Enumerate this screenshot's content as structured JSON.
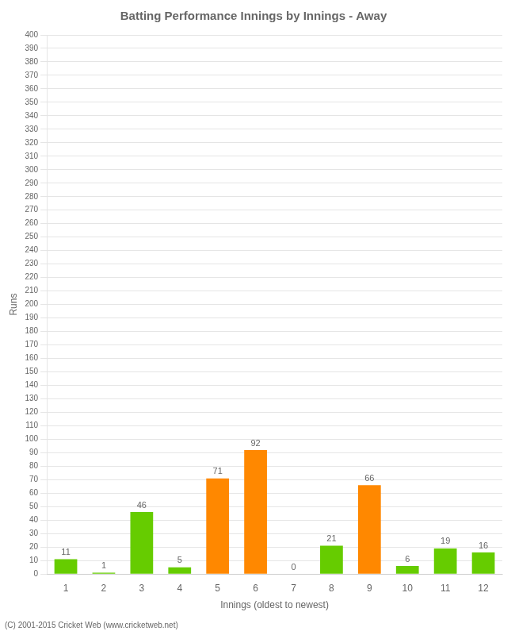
{
  "chart_data": {
    "type": "bar",
    "title": "Batting Performance Innings by Innings - Away",
    "xlabel": "Innings (oldest to newest)",
    "ylabel": "Runs",
    "footer": "(C) 2001-2015 Cricket Web (www.cricketweb.net)",
    "categories": [
      "1",
      "2",
      "3",
      "4",
      "5",
      "6",
      "7",
      "8",
      "9",
      "10",
      "11",
      "12"
    ],
    "values": [
      11,
      1,
      46,
      5,
      71,
      92,
      0,
      21,
      66,
      6,
      19,
      16
    ],
    "colors": [
      "#66cc00",
      "#66cc00",
      "#66cc00",
      "#66cc00",
      "#ff8800",
      "#ff8800",
      "#66cc00",
      "#66cc00",
      "#ff8800",
      "#66cc00",
      "#66cc00",
      "#66cc00"
    ],
    "ylim": [
      0,
      400
    ],
    "yticks": [
      0,
      10,
      20,
      30,
      40,
      50,
      60,
      70,
      80,
      90,
      100,
      110,
      120,
      130,
      140,
      150,
      160,
      170,
      180,
      190,
      200,
      210,
      220,
      230,
      240,
      250,
      260,
      270,
      280,
      290,
      300,
      310,
      320,
      330,
      340,
      350,
      360,
      370,
      380,
      390,
      400
    ],
    "grid": true,
    "data_labels": true
  }
}
